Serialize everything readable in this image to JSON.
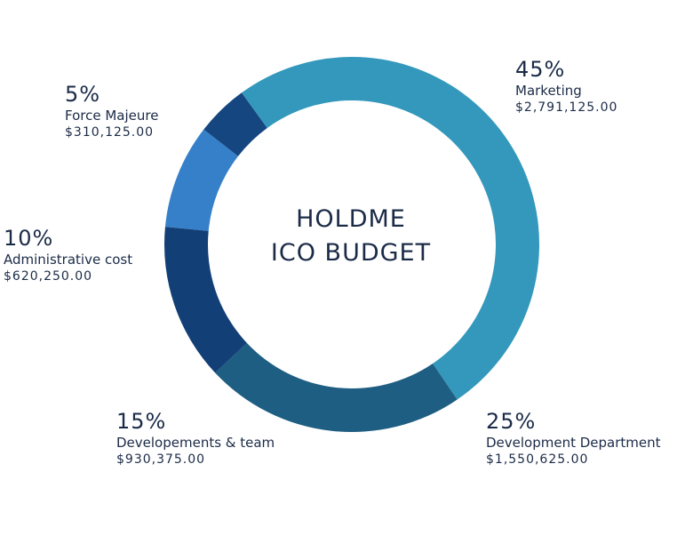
{
  "chart_data": {
    "type": "pie",
    "title_line1": "HOLDME",
    "title_line2": "ICO BUDGET",
    "slices": [
      {
        "label": "Marketing",
        "percent": "45%",
        "amount": "$2,791,125.00",
        "value": 45,
        "color": "#3398bc"
      },
      {
        "label": "Development Department",
        "percent": "25%",
        "amount": "$1,550,625.00",
        "value": 25,
        "color": "#1e5e82"
      },
      {
        "label": "Developements & team",
        "percent": "15%",
        "amount": "$930,375.00",
        "value": 15,
        "color": "#133f77"
      },
      {
        "label": "Administrative cost",
        "percent": "10%",
        "amount": "$620,250.00",
        "value": 10,
        "color": "#3680c9"
      },
      {
        "label": "Force Majeure",
        "percent": "5%",
        "amount": "$310,125.00",
        "value": 5,
        "color": "#15467f"
      }
    ],
    "wrap_slice": {
      "label": "Marketing",
      "color": "#3398bc"
    }
  }
}
